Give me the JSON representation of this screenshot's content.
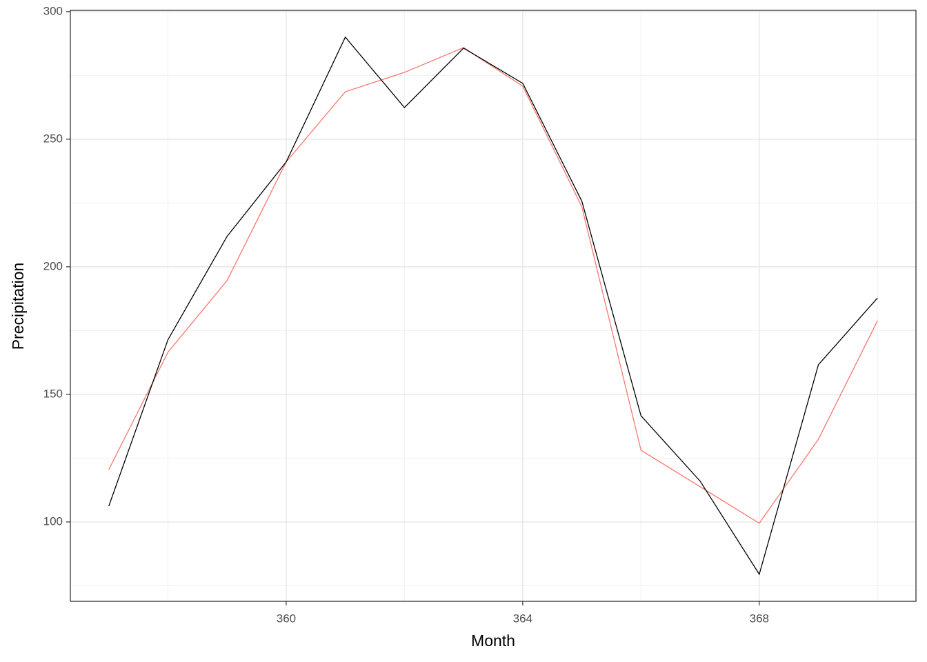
{
  "chart_data": {
    "type": "line",
    "x_label": "Month",
    "y_label": "Precipitation",
    "x": [
      357,
      358,
      359,
      360,
      361,
      362,
      363,
      364,
      365,
      366,
      367,
      368,
      369,
      370
    ],
    "series": [
      {
        "color": "#f8766d",
        "values": [
          120.5,
          166.5,
          194.6,
          241.1,
          268.6,
          276.2,
          285.9,
          270.8,
          223.5,
          128.1,
          113.8,
          99.5,
          132.4,
          178.9
        ]
      },
      {
        "color": "#000000",
        "values": [
          106.2,
          171.4,
          211.9,
          241.1,
          290.0,
          262.4,
          285.7,
          271.9,
          225.7,
          141.6,
          116.0,
          79.5,
          161.6,
          187.8
        ]
      }
    ],
    "xlim": [
      356.35,
      370.65
    ],
    "ylim": [
      68.9,
      300.5
    ],
    "xticks": [
      360,
      364,
      368
    ],
    "yticks": [
      100,
      150,
      200,
      250,
      300
    ],
    "xminorticks": [
      358,
      362,
      366,
      370
    ],
    "yminorticks": [
      75,
      125,
      175,
      225,
      275
    ],
    "grid": true
  }
}
